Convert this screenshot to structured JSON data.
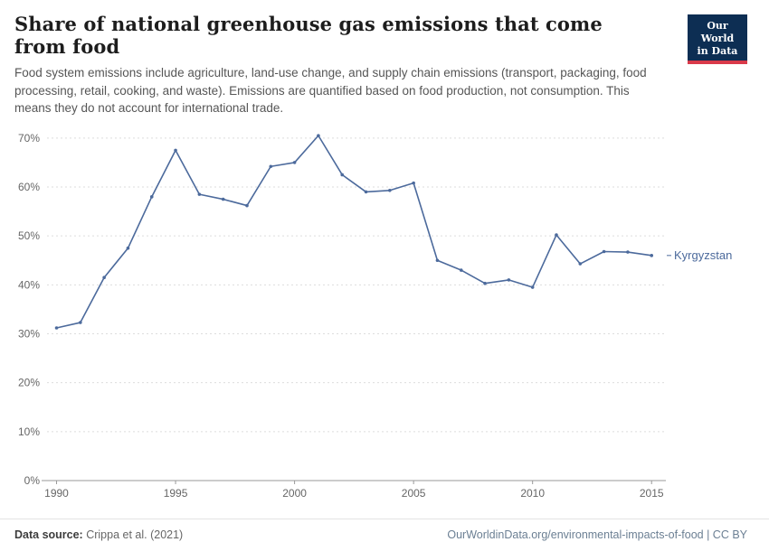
{
  "header": {
    "title": "Share of national greenhouse gas emissions that come from food",
    "subtitle": "Food system emissions include agriculture, land-use change, and supply chain emissions (transport, packaging, food processing, retail, cooking, and waste). Emissions are quantified based on food production, not consumption. This means they do not account for international trade."
  },
  "logo": {
    "line1": "Our World",
    "line2": "in Data"
  },
  "footer": {
    "datasource_label": "Data source:",
    "datasource_value": " Crippa et al. (2021)",
    "right_text": "OurWorldinData.org/environmental-impacts-of-food | CC BY"
  },
  "colors": {
    "line": "#4C6A9C",
    "grid": "#dddddd",
    "axis": "#999999",
    "tick_label": "#666666",
    "logo_bg": "#0d2e53",
    "logo_accent": "#d93a4a"
  },
  "chart_data": {
    "type": "line",
    "title": "Share of national greenhouse gas emissions that come from food",
    "xlabel": "",
    "ylabel": "",
    "y_suffix": "%",
    "grid": "dashed-horizontal",
    "legend_position": "end-of-line-label",
    "x": [
      1990,
      1991,
      1992,
      1993,
      1994,
      1995,
      1996,
      1997,
      1998,
      1999,
      2000,
      2001,
      2002,
      2003,
      2004,
      2005,
      2006,
      2007,
      2008,
      2009,
      2010,
      2011,
      2012,
      2013,
      2014,
      2015
    ],
    "series": [
      {
        "name": "Kyrgyzstan",
        "color": "#4C6A9C",
        "values": [
          31.2,
          32.3,
          41.5,
          47.5,
          58.0,
          67.5,
          58.5,
          57.5,
          56.2,
          64.2,
          65.0,
          70.5,
          62.5,
          59.0,
          59.3,
          60.8,
          45.0,
          43.0,
          40.3,
          41.0,
          39.5,
          50.2,
          44.3,
          46.8,
          46.7,
          46.0
        ]
      }
    ],
    "xticks": [
      1990,
      1995,
      2000,
      2005,
      2010,
      2015
    ],
    "yticks": [
      0,
      10,
      20,
      30,
      40,
      50,
      60,
      70
    ],
    "xlim": [
      1989.6,
      2015.6
    ],
    "ylim": [
      0,
      72
    ]
  }
}
